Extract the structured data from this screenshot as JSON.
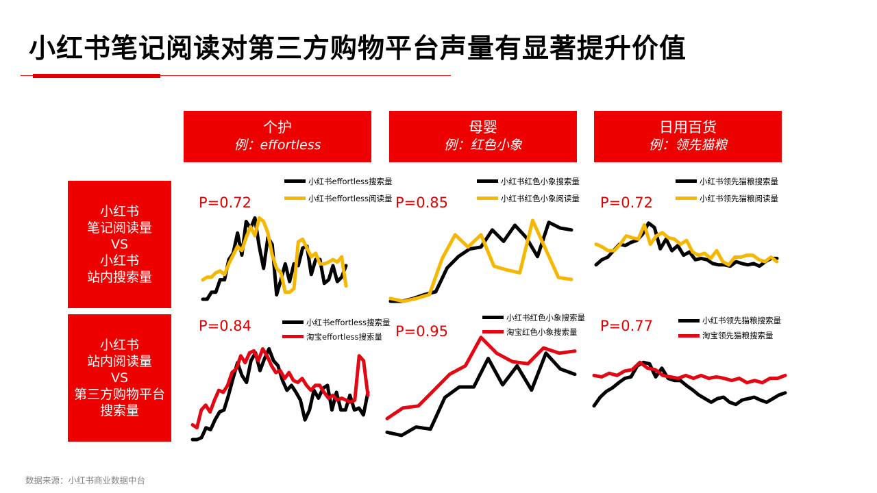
{
  "title": "小红书笔记阅读对第三方购物平台声量有显著提升价值",
  "footer": "数据来源：小红书商业数据中台",
  "columns": [
    {
      "name": "个护",
      "example": "例：effortless"
    },
    {
      "name": "母婴",
      "example": "例：红色小象"
    },
    {
      "name": "日用百货",
      "example": "例：领先猫粮"
    }
  ],
  "rows": [
    {
      "lines": [
        "小红书",
        "笔记阅读量",
        "VS",
        "小红书",
        "站内搜索量"
      ]
    },
    {
      "lines": [
        "小红书",
        "站内阅读量",
        "VS",
        "第三方购物平台",
        "搜索量"
      ]
    }
  ],
  "colors": {
    "red": "#e30613",
    "black": "#000000",
    "yellow": "#f5b700",
    "header_bg": "#ee0000"
  },
  "chart_data": [
    {
      "type": "line",
      "p_label": "P=0.72",
      "ylim": [
        0,
        100
      ],
      "series": [
        {
          "name": "小红书effortless搜索量",
          "color": "#000000",
          "values": [
            0,
            0,
            8,
            8,
            22,
            22,
            45,
            52,
            75,
            50,
            88,
            80,
            92,
            60,
            35,
            70,
            62,
            5,
            22,
            40,
            20,
            40,
            38,
            58,
            60,
            28,
            45,
            45,
            18,
            22,
            38,
            20,
            25,
            38
          ]
        },
        {
          "name": "小红书effortless阅读量",
          "color": "#f5b700",
          "values": [
            22,
            25,
            25,
            30,
            32,
            28,
            40,
            50,
            60,
            55,
            70,
            82,
            72,
            92,
            88,
            75,
            50,
            35,
            30,
            8,
            8,
            12,
            65,
            68,
            58,
            48,
            52,
            40,
            40,
            42,
            45,
            42,
            48,
            15
          ]
        }
      ]
    },
    {
      "type": "line",
      "p_label": "P=0.85",
      "ylim": [
        0,
        100
      ],
      "series": [
        {
          "name": "小红书红色小象搜索量",
          "color": "#000000",
          "values": [
            5,
            5,
            8,
            12,
            15,
            40,
            52,
            60,
            62,
            80,
            68,
            85,
            72,
            52,
            88,
            82,
            80
          ]
        },
        {
          "name": "小红书红色小象阅读量",
          "color": "#f5b700",
          "values": [
            8,
            5,
            8,
            12,
            50,
            75,
            62,
            75,
            42,
            38,
            35,
            90,
            60,
            30,
            28
          ]
        }
      ]
    },
    {
      "type": "line",
      "p_label": "P=0.72",
      "ylim": [
        0,
        100
      ],
      "series": [
        {
          "name": "小红书领先猫粮搜索量",
          "color": "#000000",
          "values": [
            30,
            38,
            42,
            52,
            62,
            60,
            65,
            68,
            78,
            95,
            88,
            55,
            70,
            52,
            60,
            45,
            50,
            38,
            40,
            38,
            32,
            30,
            30,
            28,
            35,
            32,
            30,
            32,
            28,
            35,
            40,
            40
          ]
        },
        {
          "name": "小红书领先猫粮阅读量",
          "color": "#f5b700",
          "values": [
            62,
            58,
            52,
            52,
            62,
            75,
            72,
            70,
            92,
            62,
            75,
            80,
            72,
            70,
            62,
            68,
            50,
            45,
            48,
            40,
            52,
            35,
            30,
            42,
            42,
            45,
            45,
            38,
            35,
            42,
            35
          ]
        }
      ]
    },
    {
      "type": "line",
      "p_label": "P=0.84",
      "ylim": [
        0,
        100
      ],
      "series": [
        {
          "name": "小红书effortless搜索量",
          "color": "#000000",
          "values": [
            0,
            0,
            2,
            12,
            10,
            20,
            28,
            30,
            45,
            62,
            78,
            65,
            58,
            80,
            88,
            70,
            82,
            92,
            80,
            75,
            60,
            50,
            55,
            48,
            40,
            20,
            30,
            50,
            42,
            52,
            55,
            30,
            48,
            30,
            30,
            45,
            30,
            32,
            25,
            48
          ]
        },
        {
          "name": "淘宝effortless搜索量",
          "color": "#e30613",
          "values": [
            15,
            12,
            30,
            35,
            28,
            40,
            50,
            48,
            55,
            68,
            72,
            85,
            78,
            88,
            90,
            80,
            92,
            85,
            75,
            68,
            70,
            62,
            68,
            60,
            58,
            62,
            55,
            50,
            55,
            55,
            48,
            42,
            45,
            40,
            42,
            40,
            38,
            40,
            85,
            80,
            45
          ]
        }
      ]
    },
    {
      "type": "line",
      "p_label": "P=0.95",
      "ylim": [
        0,
        100
      ],
      "series": [
        {
          "name": "小红书红色小象搜索量",
          "color": "#000000",
          "values": [
            5,
            2,
            10,
            8,
            38,
            48,
            48,
            75,
            50,
            68,
            45,
            80,
            65,
            60
          ]
        },
        {
          "name": "淘宝红色小象搜索量",
          "color": "#e30613",
          "values": [
            18,
            28,
            30,
            45,
            60,
            68,
            95,
            80,
            72,
            70,
            85,
            80,
            82
          ]
        }
      ]
    },
    {
      "type": "line",
      "p_label": "P=0.77",
      "ylim": [
        0,
        100
      ],
      "series": [
        {
          "name": "小红书领先猫粮搜索量",
          "color": "#000000",
          "values": [
            20,
            32,
            40,
            45,
            52,
            58,
            60,
            75,
            80,
            78,
            60,
            72,
            58,
            55,
            55,
            48,
            42,
            35,
            30,
            25,
            30,
            32,
            25,
            22,
            28,
            30,
            32,
            28,
            25,
            30,
            35,
            38
          ]
        },
        {
          "name": "淘宝领先猫粮搜索量",
          "color": "#e30613",
          "values": [
            62,
            60,
            65,
            62,
            68,
            70,
            80,
            72,
            70,
            62,
            60,
            58,
            62,
            58,
            62,
            58,
            60,
            58,
            55,
            58,
            52,
            55,
            52,
            58,
            58,
            62
          ]
        }
      ]
    }
  ]
}
